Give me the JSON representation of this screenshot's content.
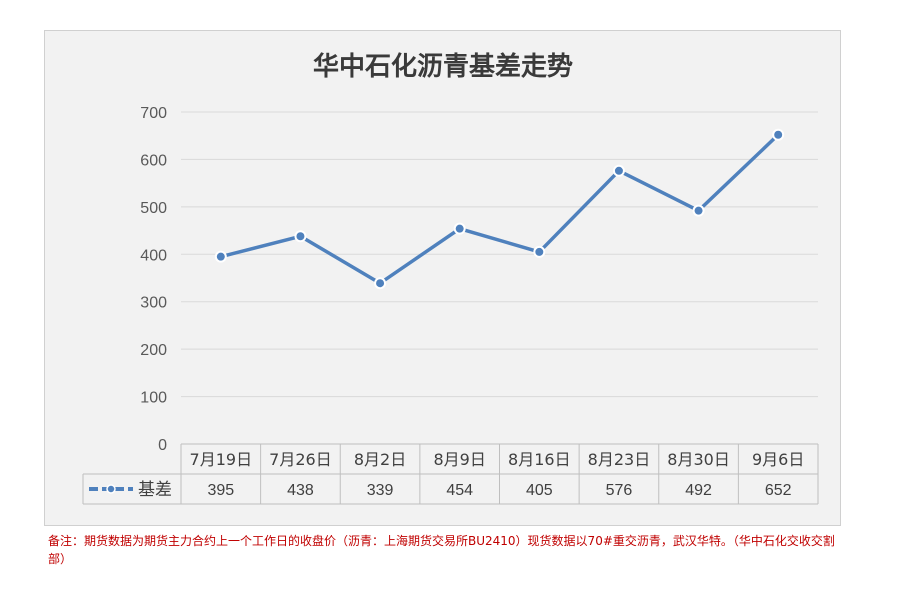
{
  "chart_data": {
    "type": "line",
    "title": "华中石化沥青基差走势",
    "categories": [
      "7月19日",
      "7月26日",
      "8月2日",
      "8月9日",
      "8月16日",
      "8月23日",
      "8月30日",
      "9月6日"
    ],
    "series": [
      {
        "name": "基差",
        "values": [
          395,
          438,
          339,
          454,
          405,
          576,
          492,
          652
        ]
      }
    ],
    "ylim": [
      0,
      700
    ],
    "yticks": [
      "0",
      "100",
      "200",
      "300",
      "400",
      "500",
      "600",
      "700"
    ],
    "grid": true,
    "legend": "data-table",
    "data_table": true,
    "colors": {
      "series": "#4f81bd",
      "grid": "#d9d9d9",
      "table_border": "#bfbfbf",
      "note": "#c00000"
    }
  },
  "note": "备注：期货数据为期货主力合约上一个工作日的收盘价（沥青：上海期货交易所BU2410）现货数据以70#重交沥青，武汉华特。（华中石化交收交割部）"
}
